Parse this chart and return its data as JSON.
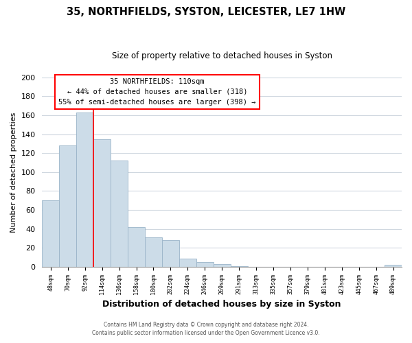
{
  "title": "35, NORTHFIELDS, SYSTON, LEICESTER, LE7 1HW",
  "subtitle": "Size of property relative to detached houses in Syston",
  "xlabel": "Distribution of detached houses by size in Syston",
  "ylabel": "Number of detached properties",
  "bar_color": "#ccdce8",
  "bar_edge_color": "#9ab4c8",
  "plot_bg_color": "#ffffff",
  "fig_bg_color": "#ffffff",
  "grid_color": "#d0d8e0",
  "bin_labels": [
    "48sqm",
    "70sqm",
    "92sqm",
    "114sqm",
    "136sqm",
    "158sqm",
    "180sqm",
    "202sqm",
    "224sqm",
    "246sqm",
    "269sqm",
    "291sqm",
    "313sqm",
    "335sqm",
    "357sqm",
    "379sqm",
    "401sqm",
    "423sqm",
    "445sqm",
    "467sqm",
    "489sqm"
  ],
  "bar_heights": [
    70,
    128,
    163,
    135,
    112,
    42,
    31,
    28,
    9,
    5,
    3,
    1,
    0,
    0,
    0,
    0,
    0,
    0,
    0,
    0,
    2
  ],
  "annotation_title": "35 NORTHFIELDS: 110sqm",
  "annotation_line1": "← 44% of detached houses are smaller (318)",
  "annotation_line2": "55% of semi-detached houses are larger (398) →",
  "red_line_x": 2.5,
  "ylim": [
    0,
    200
  ],
  "yticks": [
    0,
    20,
    40,
    60,
    80,
    100,
    120,
    140,
    160,
    180,
    200
  ],
  "footer1": "Contains HM Land Registry data © Crown copyright and database right 2024.",
  "footer2": "Contains public sector information licensed under the Open Government Licence v3.0."
}
